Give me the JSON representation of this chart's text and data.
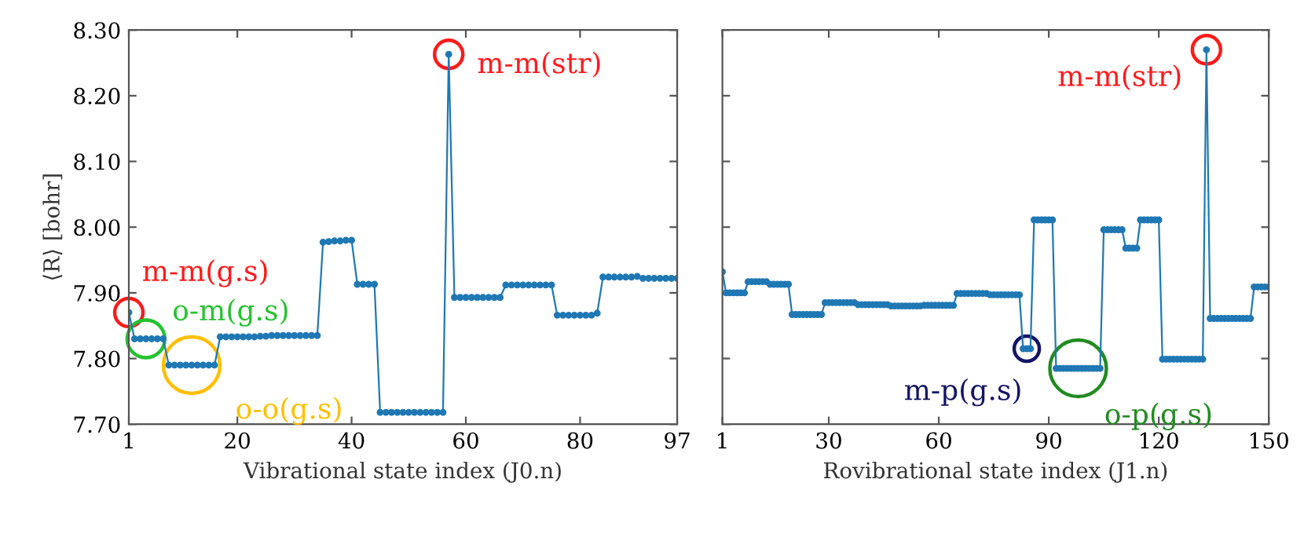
{
  "chart_data": [
    {
      "type": "line",
      "xlabel": "Vibrational state index (J0.n)",
      "ylabel": "⟨R⟩ [bohr]",
      "marker": "circle",
      "grid": false,
      "x": [
        1,
        2,
        3,
        4,
        5,
        6,
        7,
        8,
        9,
        10,
        11,
        12,
        13,
        14,
        15,
        16,
        17,
        18,
        19,
        20,
        21,
        22,
        23,
        24,
        25,
        26,
        27,
        28,
        29,
        30,
        31,
        32,
        33,
        34,
        35,
        36,
        37,
        38,
        39,
        40,
        41,
        42,
        43,
        44,
        45,
        46,
        47,
        48,
        49,
        50,
        51,
        52,
        53,
        54,
        55,
        56,
        57,
        58,
        59,
        60,
        61,
        62,
        63,
        64,
        65,
        66,
        67,
        68,
        69,
        70,
        71,
        72,
        73,
        74,
        75,
        76,
        77,
        78,
        79,
        80,
        81,
        82,
        83,
        84,
        85,
        86,
        87,
        88,
        89,
        90,
        91,
        92,
        93,
        94,
        95,
        96,
        97
      ],
      "series": [
        {
          "color": "#1f78b4",
          "values": [
            7.87,
            7.83,
            7.83,
            7.83,
            7.83,
            7.83,
            7.83,
            7.79,
            7.79,
            7.79,
            7.79,
            7.79,
            7.79,
            7.79,
            7.79,
            7.79,
            7.833,
            7.833,
            7.833,
            7.833,
            7.833,
            7.833,
            7.833,
            7.834,
            7.834,
            7.835,
            7.835,
            7.835,
            7.835,
            7.835,
            7.835,
            7.835,
            7.835,
            7.835,
            7.977,
            7.978,
            7.979,
            7.979,
            7.98,
            7.98,
            7.913,
            7.913,
            7.913,
            7.913,
            7.718,
            7.718,
            7.718,
            7.718,
            7.718,
            7.718,
            7.718,
            7.718,
            7.718,
            7.718,
            7.718,
            7.718,
            8.263,
            7.893,
            7.893,
            7.893,
            7.893,
            7.893,
            7.893,
            7.893,
            7.893,
            7.893,
            7.912,
            7.912,
            7.912,
            7.912,
            7.912,
            7.912,
            7.912,
            7.912,
            7.912,
            7.866,
            7.866,
            7.866,
            7.866,
            7.866,
            7.866,
            7.866,
            7.869,
            7.924,
            7.924,
            7.924,
            7.924,
            7.924,
            7.924,
            7.925,
            7.922,
            7.922,
            7.922,
            7.922,
            7.922,
            7.922,
            7.922
          ]
        }
      ],
      "xlim": [
        1,
        97
      ],
      "xticks": [
        1,
        20,
        40,
        60,
        80,
        97
      ],
      "ylim": [
        7.7,
        8.3
      ],
      "yticks": [
        {
          "value": 7.7,
          "label": "7.70"
        },
        {
          "value": 7.8,
          "label": "7.80"
        },
        {
          "value": 7.9,
          "label": "7.90"
        },
        {
          "value": 8.0,
          "label": "8.00"
        },
        {
          "value": 8.1,
          "label": "8.10"
        },
        {
          "value": 8.2,
          "label": "8.20"
        },
        {
          "value": 8.3,
          "label": "8.30"
        }
      ],
      "annotations": [
        {
          "text": "m-m(g.s)",
          "x": 1,
          "y": 7.87
        },
        {
          "text": "o-m(g.s)",
          "x": 4,
          "y": 7.83
        },
        {
          "text": "o-o(g.s)",
          "x": 12,
          "y": 7.79
        },
        {
          "text": "m-m(str)",
          "x": 57,
          "y": 8.263
        }
      ]
    },
    {
      "type": "line",
      "xlabel": "Rovibrational state index (J1.n)",
      "marker": "circle",
      "grid": false,
      "tick_labels": "x",
      "x": [
        1,
        2,
        3,
        4,
        5,
        6,
        7,
        8,
        9,
        10,
        11,
        12,
        13,
        14,
        15,
        16,
        17,
        18,
        19,
        20,
        21,
        22,
        23,
        24,
        25,
        26,
        27,
        28,
        29,
        30,
        31,
        32,
        33,
        34,
        35,
        36,
        37,
        38,
        39,
        40,
        41,
        42,
        43,
        44,
        45,
        46,
        47,
        48,
        49,
        50,
        51,
        52,
        53,
        54,
        55,
        56,
        57,
        58,
        59,
        60,
        61,
        62,
        63,
        64,
        65,
        66,
        67,
        68,
        69,
        70,
        71,
        72,
        73,
        74,
        75,
        76,
        77,
        78,
        79,
        80,
        81,
        82,
        83,
        84,
        85,
        86,
        87,
        88,
        89,
        90,
        91,
        92,
        93,
        94,
        95,
        96,
        97,
        98,
        99,
        100,
        101,
        102,
        103,
        104,
        105,
        106,
        107,
        108,
        109,
        110,
        111,
        112,
        113,
        114,
        115,
        116,
        117,
        118,
        119,
        120,
        121,
        122,
        123,
        124,
        125,
        126,
        127,
        128,
        129,
        130,
        131,
        132,
        133,
        134,
        135,
        136,
        137,
        138,
        139,
        140,
        141,
        142,
        143,
        144,
        145,
        146,
        147,
        148,
        149,
        150
      ],
      "series": [
        {
          "color": "#1f78b4",
          "values": [
            7.932,
            7.9,
            7.9,
            7.9,
            7.9,
            7.9,
            7.9,
            7.917,
            7.917,
            7.917,
            7.917,
            7.917,
            7.917,
            7.913,
            7.913,
            7.913,
            7.913,
            7.913,
            7.913,
            7.867,
            7.867,
            7.867,
            7.867,
            7.867,
            7.867,
            7.867,
            7.867,
            7.867,
            7.885,
            7.885,
            7.885,
            7.885,
            7.885,
            7.885,
            7.885,
            7.885,
            7.885,
            7.882,
            7.882,
            7.882,
            7.882,
            7.882,
            7.882,
            7.882,
            7.882,
            7.882,
            7.88,
            7.88,
            7.88,
            7.88,
            7.88,
            7.88,
            7.88,
            7.88,
            7.88,
            7.881,
            7.881,
            7.881,
            7.881,
            7.881,
            7.881,
            7.881,
            7.881,
            7.881,
            7.899,
            7.899,
            7.899,
            7.899,
            7.899,
            7.899,
            7.899,
            7.899,
            7.899,
            7.897,
            7.897,
            7.897,
            7.897,
            7.897,
            7.897,
            7.897,
            7.897,
            7.897,
            7.815,
            7.815,
            7.815,
            8.011,
            8.011,
            8.011,
            8.011,
            8.011,
            8.011,
            7.785,
            7.785,
            7.785,
            7.785,
            7.785,
            7.785,
            7.785,
            7.785,
            7.785,
            7.785,
            7.785,
            7.785,
            7.785,
            7.996,
            7.996,
            7.996,
            7.996,
            7.996,
            7.996,
            7.968,
            7.968,
            7.968,
            7.968,
            8.011,
            8.011,
            8.011,
            8.011,
            8.011,
            8.011,
            7.799,
            7.799,
            7.799,
            7.799,
            7.799,
            7.799,
            7.799,
            7.799,
            7.799,
            7.799,
            7.799,
            7.799,
            8.27,
            7.861,
            7.861,
            7.861,
            7.861,
            7.861,
            7.861,
            7.861,
            7.861,
            7.861,
            7.861,
            7.861,
            7.861,
            7.909,
            7.909,
            7.909,
            7.909,
            7.909
          ]
        }
      ],
      "xlim": [
        1,
        150
      ],
      "xticks": [
        1,
        30,
        60,
        90,
        120,
        150
      ],
      "ylim": [
        7.7,
        8.3
      ],
      "yticks": [
        {
          "value": 7.7,
          "label": null
        },
        {
          "value": 7.8,
          "label": null
        },
        {
          "value": 7.9,
          "label": null
        },
        {
          "value": 8.0,
          "label": null
        },
        {
          "value": 8.1,
          "label": null
        },
        {
          "value": 8.2,
          "label": null
        },
        {
          "value": 8.3,
          "label": null
        }
      ],
      "annotations": [
        {
          "text": "m-p(g.s)",
          "x": 84,
          "y": 7.815
        },
        {
          "text": "o-p(g.s)",
          "x": 98,
          "y": 7.785
        },
        {
          "text": "m-m(str)",
          "x": 133,
          "y": 8.27
        }
      ]
    }
  ]
}
